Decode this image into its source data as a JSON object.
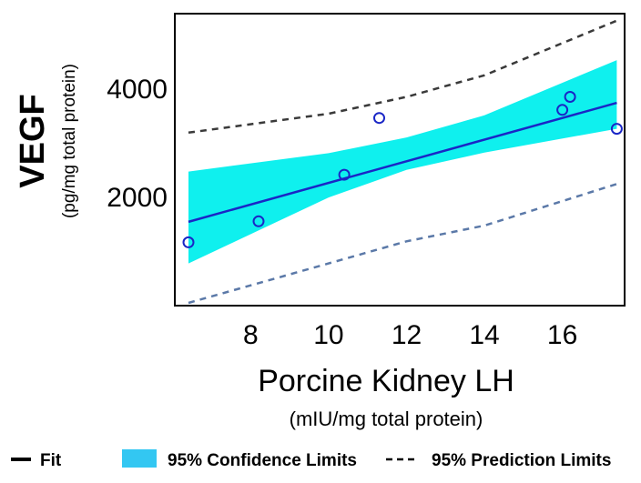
{
  "chart_data": {
    "type": "scatter",
    "xlabel": "Porcine Kidney LH",
    "xlabel_sub": "(mIU/mg total protein)",
    "ylabel": "VEGF",
    "ylabel_sub": "(pg/mg total protein)",
    "xlim": [
      6.05,
      17.6
    ],
    "ylim": [
      0,
      5400
    ],
    "x_ticks": [
      8,
      10,
      12,
      14,
      16
    ],
    "x_tick_labels": [
      "8",
      "10",
      "12",
      "14",
      "16"
    ],
    "y_ticks": [
      2000,
      4000
    ],
    "y_tick_labels": [
      "2000",
      "4000"
    ],
    "points": {
      "name": "Observations",
      "x": [
        6.4,
        8.2,
        10.4,
        11.3,
        16.0,
        16.2,
        17.4
      ],
      "y": [
        1170,
        1560,
        2420,
        3470,
        3620,
        3860,
        3270
      ]
    },
    "fit": {
      "name": "Fit",
      "x": [
        6.4,
        17.4
      ],
      "y": [
        1550,
        3750
      ]
    },
    "confidence_band": {
      "name": "95% Confidence Limits",
      "x": [
        6.4,
        10,
        12,
        14,
        17.4
      ],
      "lower": [
        780,
        2000,
        2510,
        2830,
        3270
      ],
      "upper": [
        2480,
        2820,
        3110,
        3520,
        4540
      ]
    },
    "prediction_lower": {
      "name": "95% Prediction Limits",
      "x": [
        6.4,
        10,
        12,
        14,
        17.4
      ],
      "y": [
        50,
        780,
        1190,
        1480,
        2250
      ]
    },
    "prediction_upper": {
      "name": "95% Prediction Limits",
      "x": [
        6.4,
        10,
        12,
        14,
        17.4
      ],
      "y": [
        3200,
        3550,
        3860,
        4260,
        5270
      ]
    },
    "legend": [
      {
        "label": "Fit",
        "style": "solid-line"
      },
      {
        "label": "95% Confidence Limits",
        "style": "filled-box"
      },
      {
        "label": "95% Prediction Limits",
        "style": "dashed-line"
      }
    ],
    "colors": {
      "band": "#0ff0ee",
      "fit": "#1a26c6",
      "points": "#1a26c6",
      "pred_upper": "#3a3a3a",
      "pred_lower": "#5b79a8",
      "legend_box": "#33c7f2"
    }
  }
}
